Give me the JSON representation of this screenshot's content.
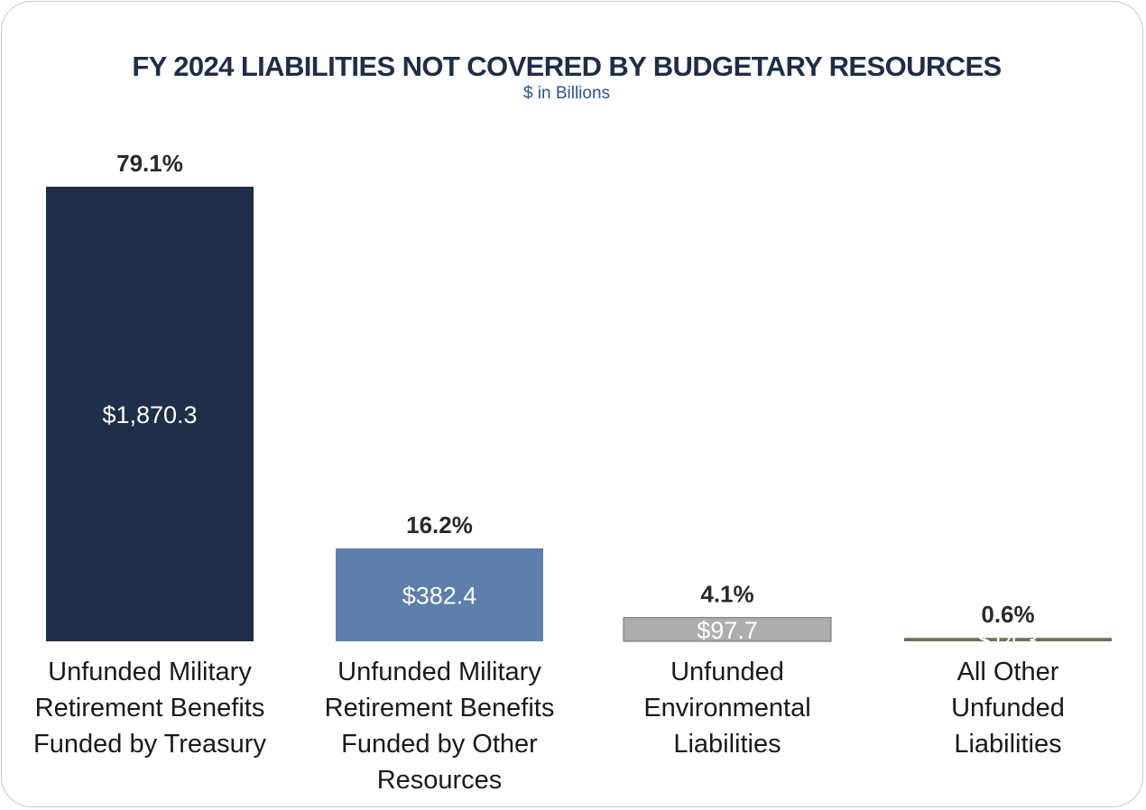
{
  "chart_data": {
    "type": "bar",
    "title": "FY 2024 LIABILITIES NOT COVERED BY BUDGETARY RESOURCES",
    "subtitle": "$ in Billions",
    "categories": [
      [
        "Unfunded Military",
        "Retirement Benefits",
        "Funded by Treasury"
      ],
      [
        "Unfunded Military",
        "Retirement Benefits",
        "Funded by Other",
        "Resources"
      ],
      [
        "Unfunded",
        "Environmental",
        "Liabilities"
      ],
      [
        "All Other",
        "Unfunded",
        "Liabilities"
      ]
    ],
    "values": [
      1870.3,
      382.4,
      97.7,
      14.3
    ],
    "value_labels": [
      "$1,870.3",
      "$382.4",
      "$97.7",
      "$14.3"
    ],
    "percent_labels": [
      "79.1%",
      "16.2%",
      "4.1%",
      "0.6%"
    ],
    "colors": [
      "#1f2f4a",
      "#5e7fab",
      "#adadad",
      "#72725c"
    ],
    "xlabel": "",
    "ylabel": "",
    "grid": false,
    "legend": "none"
  }
}
